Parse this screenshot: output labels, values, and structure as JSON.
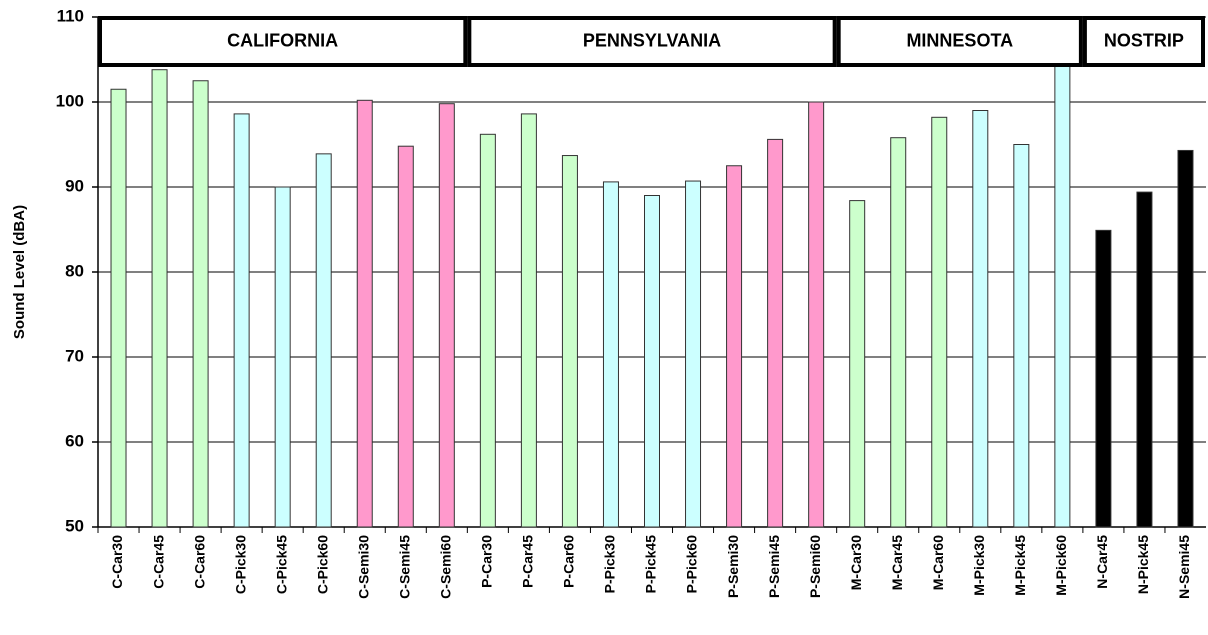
{
  "chart_data": {
    "type": "bar",
    "y_label": "Sound Level (dBA)",
    "categories": [
      "C-Car30",
      "C-Car45",
      "C-Car60",
      "C-Pick30",
      "C-Pick45",
      "C-Pick60",
      "C-Semi30",
      "C-Semi45",
      "C-Semi60",
      "P-Car30",
      "P-Car45",
      "P-Car60",
      "P-Pick30",
      "P-Pick45",
      "P-Pick60",
      "P-Semi30",
      "P-Semi45",
      "P-Semi60",
      "M-Car30",
      "M-Car45",
      "M-Car60",
      "M-Pick30",
      "M-Pick45",
      "M-Pick60",
      "N-Car45",
      "N-Pick45",
      "N-Semi45"
    ],
    "values": [
      101.5,
      103.8,
      102.5,
      98.6,
      90.0,
      93.9,
      100.2,
      94.8,
      99.8,
      96.2,
      98.6,
      93.7,
      90.6,
      89.0,
      90.7,
      92.5,
      95.6,
      100.0,
      88.4,
      95.8,
      98.2,
      99.0,
      95.0,
      104.8,
      84.9,
      89.4,
      94.3
    ],
    "colors": [
      "#ccffcc",
      "#ccffcc",
      "#ccffcc",
      "#ccffff",
      "#ccffff",
      "#ccffff",
      "#ff99cc",
      "#ff99cc",
      "#ff99cc",
      "#ccffcc",
      "#ccffcc",
      "#ccffcc",
      "#ccffff",
      "#ccffff",
      "#ccffff",
      "#ff99cc",
      "#ff99cc",
      "#ff99cc",
      "#ccffcc",
      "#ccffcc",
      "#ccffcc",
      "#ccffff",
      "#ccffff",
      "#ccffff",
      "#000000",
      "#000000",
      "#000000"
    ],
    "groups": [
      "CALIFORNIA",
      "PENNSYLVANIA",
      "MINNESOTA",
      "NOSTRIP"
    ],
    "ylim": [
      50,
      110
    ],
    "yticks": [
      50,
      60,
      70,
      80,
      90,
      100,
      110
    ],
    "grid": true
  }
}
